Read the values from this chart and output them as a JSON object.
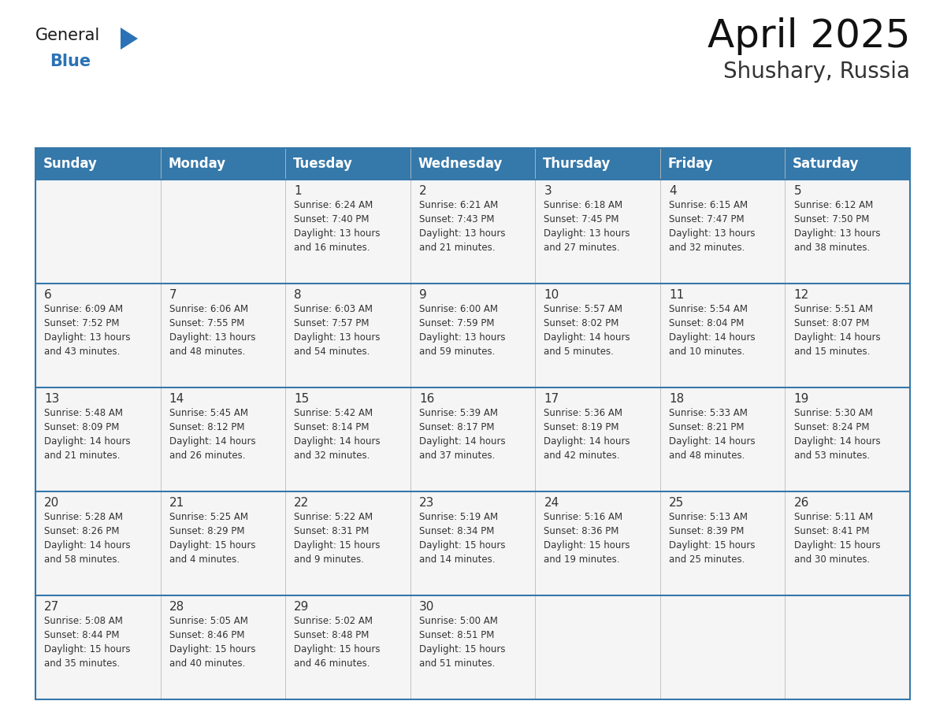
{
  "title": "April 2025",
  "subtitle": "Shushary, Russia",
  "header_bg_color": "#3578aa",
  "header_text_color": "#ffffff",
  "cell_bg_color": "#f5f5f5",
  "border_color": "#2d6898",
  "row_line_color": "#3578aa",
  "text_color": "#333333",
  "days_of_week": [
    "Sunday",
    "Monday",
    "Tuesday",
    "Wednesday",
    "Thursday",
    "Friday",
    "Saturday"
  ],
  "weeks": [
    [
      {
        "day": "",
        "text": ""
      },
      {
        "day": "",
        "text": ""
      },
      {
        "day": "1",
        "text": "Sunrise: 6:24 AM\nSunset: 7:40 PM\nDaylight: 13 hours\nand 16 minutes."
      },
      {
        "day": "2",
        "text": "Sunrise: 6:21 AM\nSunset: 7:43 PM\nDaylight: 13 hours\nand 21 minutes."
      },
      {
        "day": "3",
        "text": "Sunrise: 6:18 AM\nSunset: 7:45 PM\nDaylight: 13 hours\nand 27 minutes."
      },
      {
        "day": "4",
        "text": "Sunrise: 6:15 AM\nSunset: 7:47 PM\nDaylight: 13 hours\nand 32 minutes."
      },
      {
        "day": "5",
        "text": "Sunrise: 6:12 AM\nSunset: 7:50 PM\nDaylight: 13 hours\nand 38 minutes."
      }
    ],
    [
      {
        "day": "6",
        "text": "Sunrise: 6:09 AM\nSunset: 7:52 PM\nDaylight: 13 hours\nand 43 minutes."
      },
      {
        "day": "7",
        "text": "Sunrise: 6:06 AM\nSunset: 7:55 PM\nDaylight: 13 hours\nand 48 minutes."
      },
      {
        "day": "8",
        "text": "Sunrise: 6:03 AM\nSunset: 7:57 PM\nDaylight: 13 hours\nand 54 minutes."
      },
      {
        "day": "9",
        "text": "Sunrise: 6:00 AM\nSunset: 7:59 PM\nDaylight: 13 hours\nand 59 minutes."
      },
      {
        "day": "10",
        "text": "Sunrise: 5:57 AM\nSunset: 8:02 PM\nDaylight: 14 hours\nand 5 minutes."
      },
      {
        "day": "11",
        "text": "Sunrise: 5:54 AM\nSunset: 8:04 PM\nDaylight: 14 hours\nand 10 minutes."
      },
      {
        "day": "12",
        "text": "Sunrise: 5:51 AM\nSunset: 8:07 PM\nDaylight: 14 hours\nand 15 minutes."
      }
    ],
    [
      {
        "day": "13",
        "text": "Sunrise: 5:48 AM\nSunset: 8:09 PM\nDaylight: 14 hours\nand 21 minutes."
      },
      {
        "day": "14",
        "text": "Sunrise: 5:45 AM\nSunset: 8:12 PM\nDaylight: 14 hours\nand 26 minutes."
      },
      {
        "day": "15",
        "text": "Sunrise: 5:42 AM\nSunset: 8:14 PM\nDaylight: 14 hours\nand 32 minutes."
      },
      {
        "day": "16",
        "text": "Sunrise: 5:39 AM\nSunset: 8:17 PM\nDaylight: 14 hours\nand 37 minutes."
      },
      {
        "day": "17",
        "text": "Sunrise: 5:36 AM\nSunset: 8:19 PM\nDaylight: 14 hours\nand 42 minutes."
      },
      {
        "day": "18",
        "text": "Sunrise: 5:33 AM\nSunset: 8:21 PM\nDaylight: 14 hours\nand 48 minutes."
      },
      {
        "day": "19",
        "text": "Sunrise: 5:30 AM\nSunset: 8:24 PM\nDaylight: 14 hours\nand 53 minutes."
      }
    ],
    [
      {
        "day": "20",
        "text": "Sunrise: 5:28 AM\nSunset: 8:26 PM\nDaylight: 14 hours\nand 58 minutes."
      },
      {
        "day": "21",
        "text": "Sunrise: 5:25 AM\nSunset: 8:29 PM\nDaylight: 15 hours\nand 4 minutes."
      },
      {
        "day": "22",
        "text": "Sunrise: 5:22 AM\nSunset: 8:31 PM\nDaylight: 15 hours\nand 9 minutes."
      },
      {
        "day": "23",
        "text": "Sunrise: 5:19 AM\nSunset: 8:34 PM\nDaylight: 15 hours\nand 14 minutes."
      },
      {
        "day": "24",
        "text": "Sunrise: 5:16 AM\nSunset: 8:36 PM\nDaylight: 15 hours\nand 19 minutes."
      },
      {
        "day": "25",
        "text": "Sunrise: 5:13 AM\nSunset: 8:39 PM\nDaylight: 15 hours\nand 25 minutes."
      },
      {
        "day": "26",
        "text": "Sunrise: 5:11 AM\nSunset: 8:41 PM\nDaylight: 15 hours\nand 30 minutes."
      }
    ],
    [
      {
        "day": "27",
        "text": "Sunrise: 5:08 AM\nSunset: 8:44 PM\nDaylight: 15 hours\nand 35 minutes."
      },
      {
        "day": "28",
        "text": "Sunrise: 5:05 AM\nSunset: 8:46 PM\nDaylight: 15 hours\nand 40 minutes."
      },
      {
        "day": "29",
        "text": "Sunrise: 5:02 AM\nSunset: 8:48 PM\nDaylight: 15 hours\nand 46 minutes."
      },
      {
        "day": "30",
        "text": "Sunrise: 5:00 AM\nSunset: 8:51 PM\nDaylight: 15 hours\nand 51 minutes."
      },
      {
        "day": "",
        "text": ""
      },
      {
        "day": "",
        "text": ""
      },
      {
        "day": "",
        "text": ""
      }
    ]
  ],
  "logo_text1": "General",
  "logo_text2": "Blue",
  "logo_text1_color": "#1a1a1a",
  "logo_text2_color": "#2a72b5",
  "logo_triangle_color": "#2a72b5",
  "title_fontsize": 36,
  "subtitle_fontsize": 20,
  "header_fontsize": 12,
  "day_num_fontsize": 11,
  "cell_text_fontsize": 8.5
}
